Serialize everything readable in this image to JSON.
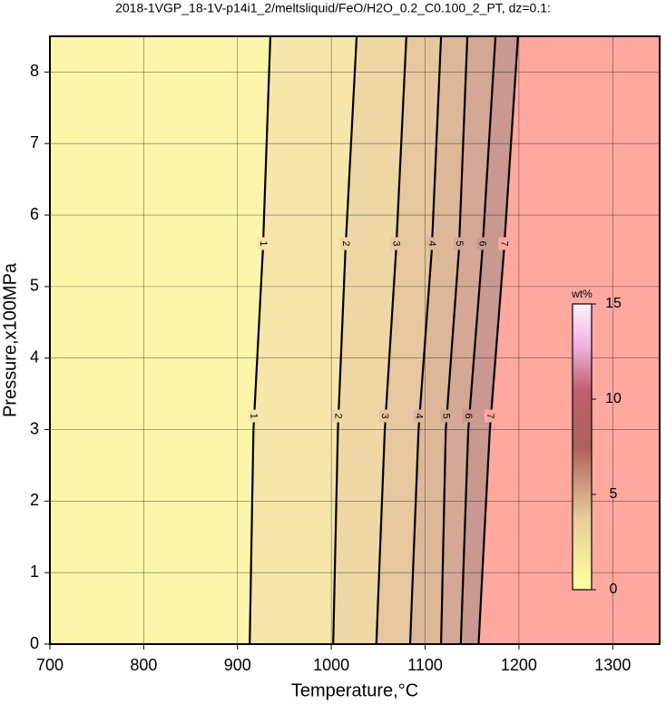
{
  "chart_data": {
    "type": "contour",
    "title": "2018-1VGP_18-1V-p14i1_2/meltsliquid/FeO/H2O_0.2_C0.100_2_PT, dz=0.1:",
    "x_label": "Temperature,°C",
    "y_label": "Pressure,x100MPa",
    "xlim": [
      700,
      1350
    ],
    "ylim": [
      0,
      8.5
    ],
    "xticks": [
      700,
      800,
      900,
      1000,
      1100,
      1200,
      1300
    ],
    "yticks": [
      0,
      1,
      2,
      3,
      4,
      5,
      6,
      7,
      8
    ],
    "grid": true,
    "contours": [
      {
        "level": 1,
        "x": [
          913,
          917,
          927,
          935
        ],
        "y": [
          0,
          3,
          5.5,
          8.5
        ]
      },
      {
        "level": 2,
        "x": [
          1002,
          1007,
          1015,
          1027
        ],
        "y": [
          0,
          3,
          5.5,
          8.5
        ]
      },
      {
        "level": 3,
        "x": [
          1048,
          1057,
          1069,
          1080
        ],
        "y": [
          0,
          3,
          5.5,
          8.5
        ]
      },
      {
        "level": 4,
        "x": [
          1084,
          1093,
          1107,
          1117
        ],
        "y": [
          0,
          3,
          5.5,
          8.5
        ]
      },
      {
        "level": 5,
        "x": [
          1117,
          1122,
          1136,
          1145
        ],
        "y": [
          0,
          3,
          5.5,
          8.5
        ]
      },
      {
        "level": 6,
        "x": [
          1138,
          1146,
          1161,
          1175
        ],
        "y": [
          0,
          3,
          5.5,
          8.5
        ]
      },
      {
        "level": 7,
        "x": [
          1157,
          1169,
          1184,
          1199
        ],
        "y": [
          0,
          3,
          5.5,
          8.5
        ]
      }
    ],
    "colorbar": {
      "label": "wt%",
      "lim": [
        0,
        15
      ],
      "ticks": [
        0,
        5,
        10,
        15
      ]
    }
  }
}
